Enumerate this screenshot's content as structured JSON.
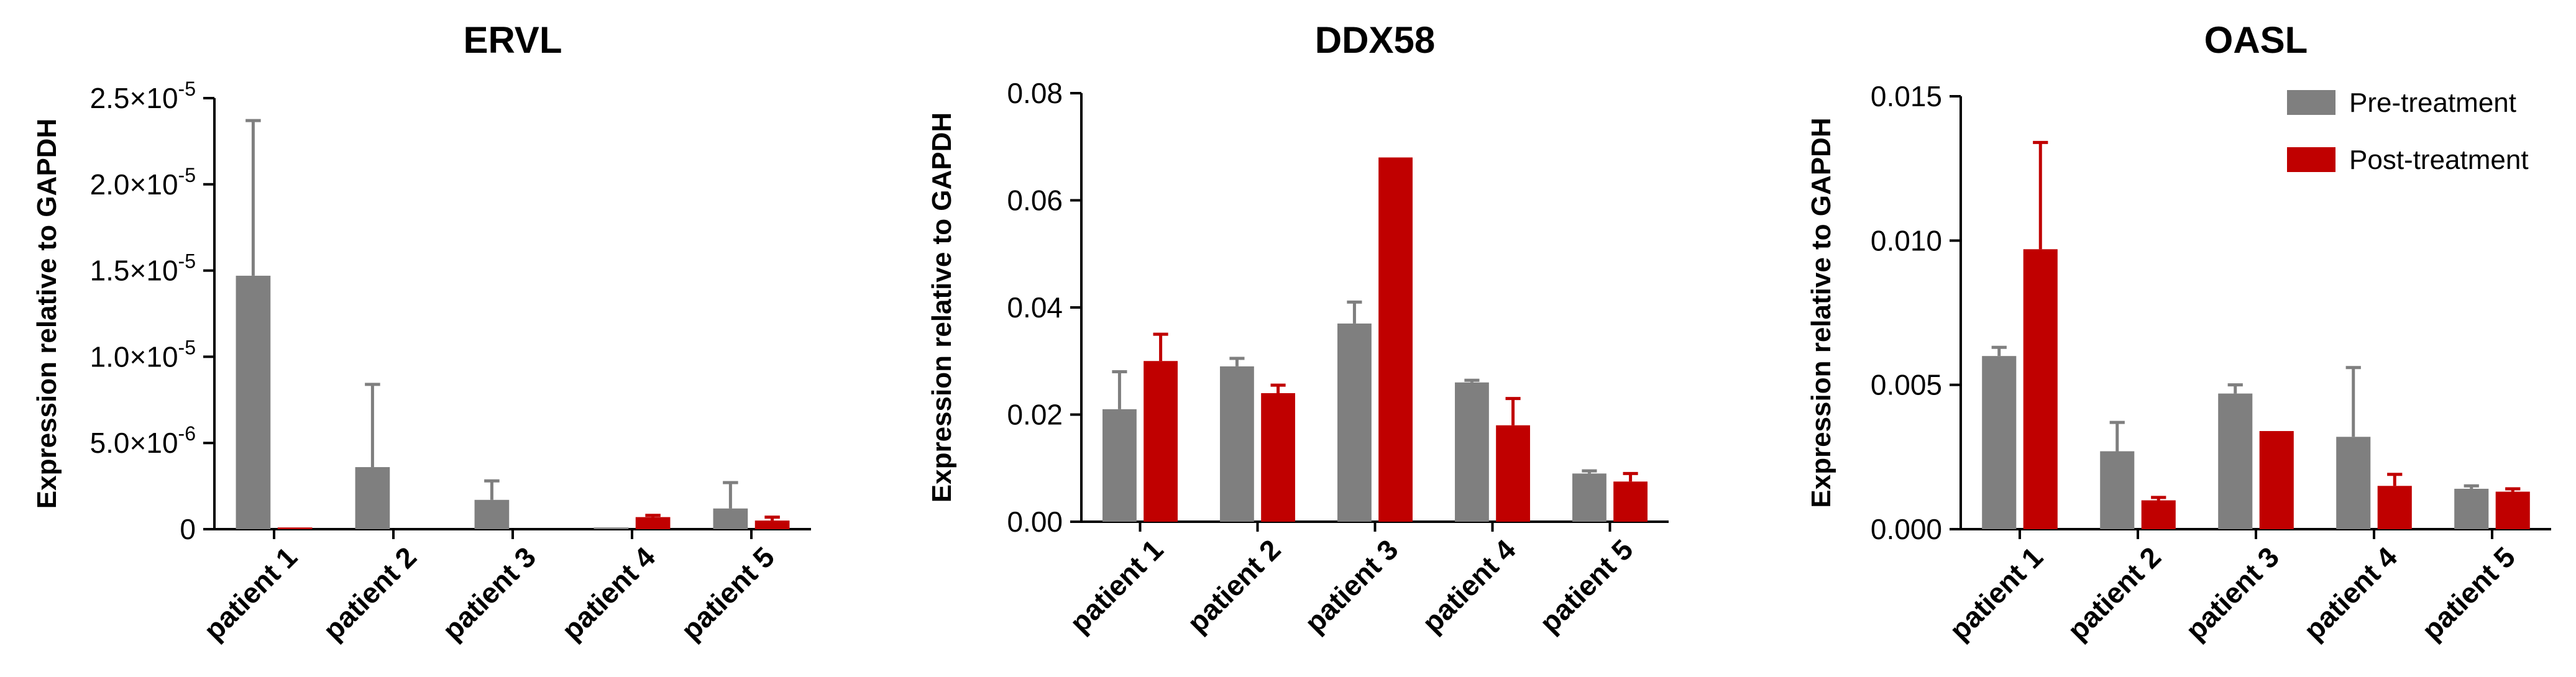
{
  "colors": {
    "pre": "#7f7f7f",
    "post": "#c00000"
  },
  "legend": {
    "placement": "top-right of third chart",
    "entries": [
      "Pre-treatment",
      "Post-treatment"
    ]
  },
  "chart_data": [
    {
      "type": "bar",
      "title": "ERVL",
      "ylabel": "Expression relative to GAPDH",
      "ylim": [
        0,
        2.5e-05
      ],
      "ticks": [
        0,
        5e-06,
        1e-05,
        1.5e-05,
        2e-05,
        2.5e-05
      ],
      "tick_labels": [
        "0",
        "5.0×10-6",
        "1.0×10-5",
        "1.5×10-5",
        "2.0×10-5",
        "2.5×10-5"
      ],
      "categories": [
        "patient 1",
        "patient 2",
        "patient 3",
        "patient 4",
        "patient 5"
      ],
      "series": [
        {
          "name": "Pre-treatment",
          "values": [
            1.47e-05,
            3.6e-06,
            1.7e-06,
            1e-07,
            1.2e-06
          ],
          "errors": [
            9e-06,
            4.8e-06,
            1.1e-06,
            0,
            1.5e-06
          ]
        },
        {
          "name": "Post-treatment",
          "values": [
            1e-07,
            0,
            0,
            7e-07,
            5e-07
          ],
          "errors": [
            0,
            0,
            0,
            1e-07,
            2e-07
          ]
        }
      ]
    },
    {
      "type": "bar",
      "title": "DDX58",
      "ylabel": "Expression relative to GAPDH",
      "ylim": [
        0,
        0.08
      ],
      "ticks": [
        0,
        0.02,
        0.04,
        0.06,
        0.08
      ],
      "tick_labels": [
        "0.00",
        "0.02",
        "0.04",
        "0.06",
        "0.08"
      ],
      "categories": [
        "patient 1",
        "patient 2",
        "patient 3",
        "patient 4",
        "patient 5"
      ],
      "series": [
        {
          "name": "Pre-treatment",
          "values": [
            0.021,
            0.029,
            0.037,
            0.026,
            0.009
          ],
          "errors": [
            0.007,
            0.0015,
            0.004,
            0.0004,
            0.0005
          ]
        },
        {
          "name": "Post-treatment",
          "values": [
            0.03,
            0.024,
            0.068,
            0.018,
            0.0075
          ],
          "errors": [
            0.005,
            0.0015,
            0,
            0.005,
            0.0015
          ]
        }
      ]
    },
    {
      "type": "bar",
      "title": "OASL",
      "ylabel": "Expression relative to GAPDH",
      "ylim": [
        0,
        0.015
      ],
      "ticks": [
        0,
        0.005,
        0.01,
        0.015
      ],
      "tick_labels": [
        "0.000",
        "0.005",
        "0.010",
        "0.015"
      ],
      "categories": [
        "patient 1",
        "patient 2",
        "patient 3",
        "patient 4",
        "patient 5"
      ],
      "series": [
        {
          "name": "Pre-treatment",
          "values": [
            0.006,
            0.0027,
            0.0047,
            0.0032,
            0.0014
          ],
          "errors": [
            0.0003,
            0.001,
            0.0003,
            0.0024,
            0.0001
          ]
        },
        {
          "name": "Post-treatment",
          "values": [
            0.0097,
            0.001,
            0.0034,
            0.0015,
            0.0013
          ],
          "errors": [
            0.0037,
            0.0001,
            0,
            0.0004,
            0.0001
          ]
        }
      ]
    }
  ]
}
